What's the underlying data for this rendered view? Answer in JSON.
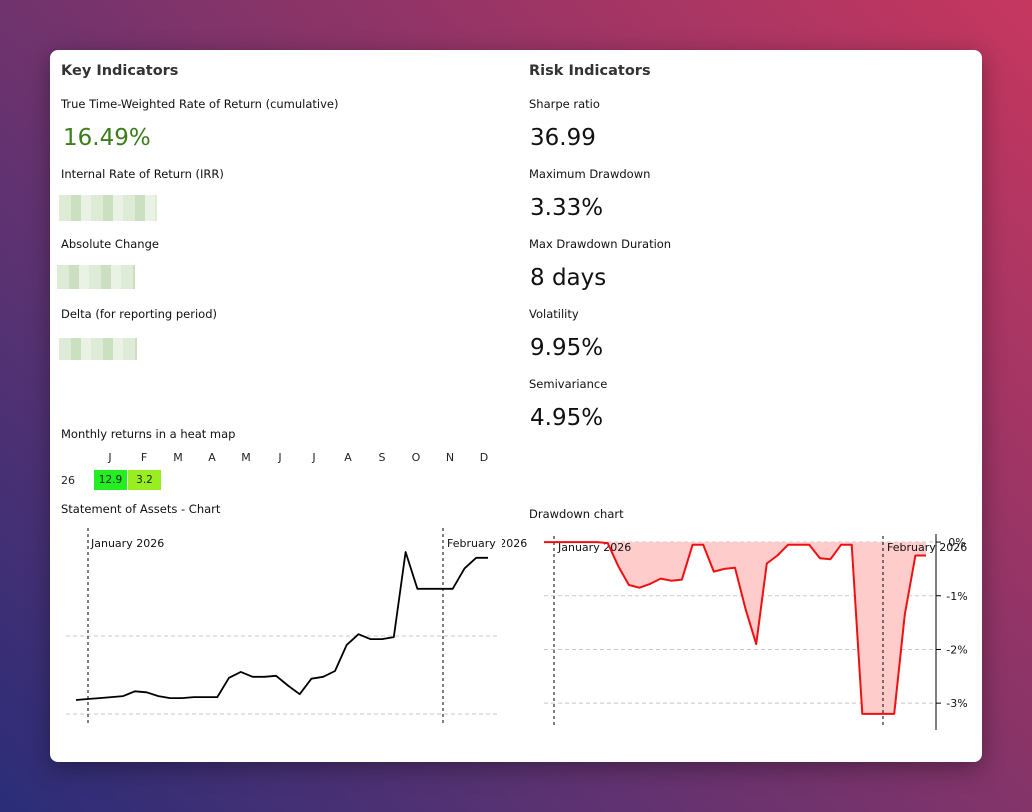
{
  "key": {
    "title": "Key Indicators",
    "twr_label": "True Time-Weighted Rate of Return (cumulative)",
    "twr_value": "16.49%",
    "irr_label": "Internal Rate of Return (IRR)",
    "abs_label": "Absolute Change",
    "delta_label": "Delta (for reporting period)"
  },
  "risk": {
    "title": "Risk Indicators",
    "sharpe_label": "Sharpe ratio",
    "sharpe_value": "36.99",
    "mdd_label": "Maximum Drawdown",
    "mdd_value": "3.33%",
    "mddd_label": "Max Drawdown Duration",
    "mddd_value": "8 days",
    "vol_label": "Volatility",
    "vol_value": "9.95%",
    "semi_label": "Semivariance",
    "semi_value": "4.95%"
  },
  "heatmap": {
    "title": "Monthly returns in a heat map",
    "months": [
      "J",
      "F",
      "M",
      "A",
      "M",
      "J",
      "J",
      "A",
      "S",
      "O",
      "N",
      "D"
    ],
    "rows": [
      {
        "year": "26",
        "cells": [
          {
            "value": "12.9",
            "color": "#22ee22"
          },
          {
            "value": "3.2",
            "color": "#99ee22"
          }
        ]
      }
    ]
  },
  "assets": {
    "title": "Statement of Assets - Chart",
    "marker1": "January 2026",
    "marker2": "February 2026"
  },
  "drawdown": {
    "title": "Drawdown chart",
    "marker1": "January 2026",
    "marker2": "February 2026"
  },
  "chart_data": [
    {
      "type": "line",
      "name": "assets",
      "values": [
        0.0,
        0.1,
        0.2,
        0.3,
        0.4,
        0.9,
        0.8,
        0.4,
        0.2,
        0.2,
        0.3,
        0.3,
        0.3,
        2.3,
        2.9,
        2.4,
        2.4,
        2.5,
        1.5,
        0.6,
        2.2,
        2.4,
        3.0,
        5.7,
        6.8,
        6.3,
        6.3,
        6.5,
        15.3,
        11.5,
        11.5,
        11.5,
        11.5,
        13.6,
        14.7,
        14.7
      ],
      "color": "#000000"
    },
    {
      "type": "area",
      "name": "drawdown",
      "values": [
        0.0,
        0.0,
        0.0,
        0.0,
        0.0,
        0.0,
        -0.02,
        -0.45,
        -0.8,
        -0.85,
        -0.78,
        -0.68,
        -0.72,
        -0.7,
        -0.05,
        -0.05,
        -0.55,
        -0.5,
        -0.48,
        -1.25,
        -1.9,
        -0.4,
        -0.25,
        -0.05,
        -0.05,
        -0.05,
        -0.3,
        -0.32,
        -0.05,
        -0.05,
        -3.2,
        -3.2,
        -3.2,
        -3.2,
        -1.35,
        -0.25,
        -0.25
      ],
      "ylim": [
        -3.5,
        0.15
      ],
      "yticks": [
        "0%",
        "-1%",
        "-2%",
        "-3%"
      ],
      "ytick_values": [
        0,
        -1,
        -2,
        -3
      ],
      "grid": true,
      "line_color": "#ee1111",
      "fill_color": "#ffcccc"
    }
  ]
}
